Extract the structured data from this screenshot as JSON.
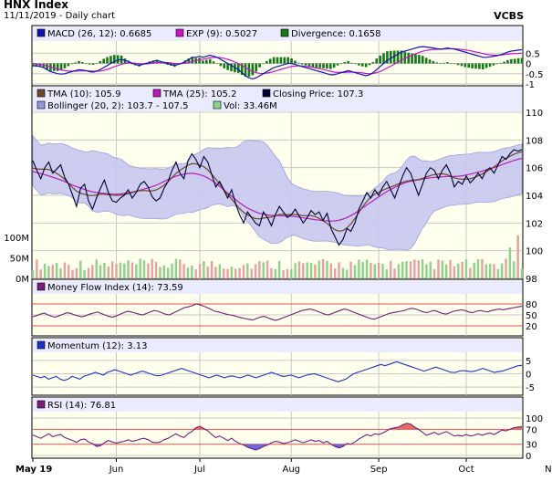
{
  "header": {
    "title": "HNX Index",
    "subtitle": "11/11/2019 - Daily chart",
    "brand": "VCBS"
  },
  "colors": {
    "panel_bg": "#ffffee",
    "legend_bg": "#ebebff",
    "grid": "#c8c8c8",
    "macd": "#1414b4",
    "exp": "#c814c8",
    "divergence": "#147814",
    "tma10": "#6e4628",
    "tma25": "#b41eb4",
    "close": "#000032",
    "bollinger_fill": "#c8c8f0",
    "bollinger_line": "#9696dc",
    "vol_up": "#8cd28c",
    "vol_down": "#e6a0a0",
    "mfi": "#781e78",
    "momentum": "#1e32c8",
    "rsi": "#781e78",
    "overbought": "#e65050",
    "oversold": "#5050dc"
  },
  "x_axis": {
    "labels": [
      "May 19",
      "Jun",
      "Jul",
      "Aug",
      "Sep",
      "Oct",
      "Nov"
    ],
    "positions": [
      0,
      21,
      42,
      65,
      87,
      109,
      131
    ]
  },
  "chart_data": [
    {
      "type": "line",
      "panel": "macd",
      "series": [
        {
          "name": "MACD (26, 12)",
          "last": "0.6685",
          "values": [
            -0.1,
            -0.12,
            -0.15,
            -0.2,
            -0.3,
            -0.4,
            -0.45,
            -0.5,
            -0.52,
            -0.5,
            -0.45,
            -0.4,
            -0.35,
            -0.3,
            -0.32,
            -0.35,
            -0.4,
            -0.42,
            -0.38,
            -0.3,
            -0.2,
            -0.1,
            0.0,
            0.1,
            0.15,
            0.2,
            0.15,
            0.1,
            0.0,
            -0.05,
            -0.1,
            -0.05,
            0.0,
            0.05,
            0.1,
            0.15,
            0.1,
            0.05,
            0.0,
            -0.05,
            -0.1,
            -0.05,
            0.0,
            0.1,
            0.2,
            0.3,
            0.3,
            0.35,
            0.3,
            0.35,
            0.4,
            0.35,
            0.3,
            0.2,
            0.1,
            0.0,
            -0.1,
            -0.2,
            -0.3,
            -0.45,
            -0.6,
            -0.7,
            -0.75,
            -0.7,
            -0.6,
            -0.5,
            -0.4,
            -0.3,
            -0.2,
            -0.15,
            -0.1,
            -0.05,
            0.0,
            0.0,
            -0.05,
            -0.1,
            -0.15,
            -0.2,
            -0.25,
            -0.3,
            -0.35,
            -0.4,
            -0.45,
            -0.5,
            -0.55,
            -0.55,
            -0.5,
            -0.45,
            -0.4,
            -0.35,
            -0.4,
            -0.45,
            -0.5,
            -0.55,
            -0.6,
            -0.55,
            -0.45,
            -0.3,
            -0.15,
            0.0,
            0.15,
            0.25,
            0.35,
            0.45,
            0.55,
            0.6,
            0.65,
            0.7,
            0.75,
            0.8,
            0.82,
            0.8,
            0.78,
            0.75,
            0.72,
            0.7,
            0.72,
            0.75,
            0.72,
            0.7,
            0.65,
            0.6,
            0.55,
            0.5,
            0.45,
            0.4,
            0.35,
            0.3,
            0.3,
            0.32,
            0.35,
            0.38,
            0.42,
            0.48,
            0.55,
            0.6,
            0.62,
            0.65,
            0.6685
          ]
        },
        {
          "name": "EXP (9)",
          "last": "0.5027",
          "values": [
            0.0,
            -0.02,
            -0.05,
            -0.08,
            -0.12,
            -0.17,
            -0.22,
            -0.27,
            -0.32,
            -0.35,
            -0.37,
            -0.38,
            -0.38,
            -0.37,
            -0.36,
            -0.36,
            -0.37,
            -0.38,
            -0.38,
            -0.37,
            -0.34,
            -0.29,
            -0.23,
            -0.16,
            -0.1,
            -0.04,
            0.0,
            0.02,
            0.02,
            0.01,
            -0.01,
            -0.02,
            -0.02,
            -0.01,
            0.01,
            0.04,
            0.05,
            0.05,
            0.04,
            0.02,
            0.0,
            -0.01,
            -0.01,
            0.01,
            0.05,
            0.1,
            0.14,
            0.18,
            0.21,
            0.24,
            0.27,
            0.29,
            0.3,
            0.28,
            0.25,
            0.2,
            0.14,
            0.07,
            -0.01,
            -0.1,
            -0.2,
            -0.3,
            -0.39,
            -0.45,
            -0.48,
            -0.49,
            -0.47,
            -0.44,
            -0.39,
            -0.34,
            -0.29,
            -0.24,
            -0.19,
            -0.15,
            -0.13,
            -0.12,
            -0.12,
            -0.14,
            -0.16,
            -0.19,
            -0.22,
            -0.26,
            -0.3,
            -0.34,
            -0.38,
            -0.42,
            -0.44,
            -0.44,
            -0.44,
            -0.42,
            -0.42,
            -0.43,
            -0.44,
            -0.46,
            -0.49,
            -0.5,
            -0.49,
            -0.45,
            -0.39,
            -0.31,
            -0.22,
            -0.13,
            -0.04,
            0.06,
            0.16,
            0.25,
            0.33,
            0.4,
            0.47,
            0.54,
            0.59,
            0.63,
            0.66,
            0.68,
            0.69,
            0.69,
            0.7,
            0.71,
            0.71,
            0.71,
            0.7,
            0.68,
            0.66,
            0.63,
            0.6,
            0.56,
            0.52,
            0.48,
            0.44,
            0.42,
            0.41,
            0.4,
            0.41,
            0.43,
            0.45,
            0.47,
            0.48,
            0.49,
            0.5027
          ]
        },
        {
          "name": "Divergence",
          "last": "0.1658",
          "values": []
        }
      ],
      "ylim": [
        -1,
        1
      ],
      "ticks": [
        "0.5",
        "0",
        "-0.5",
        "-1"
      ]
    },
    {
      "type": "line",
      "panel": "price",
      "series": [
        {
          "name": "TMA (10)",
          "last": "105.9"
        },
        {
          "name": "TMA (25)",
          "last": "105.2"
        },
        {
          "name": "Closing Price",
          "last": "107.3",
          "values": [
            106.5,
            105.8,
            105.2,
            106.0,
            106.4,
            105.6,
            105.9,
            106.2,
            105.3,
            104.8,
            104.0,
            103.2,
            104.5,
            104.8,
            103.6,
            103.0,
            103.8,
            104.5,
            105.1,
            104.2,
            103.6,
            103.5,
            103.8,
            104.0,
            104.4,
            103.8,
            104.2,
            104.8,
            105.0,
            104.6,
            103.9,
            103.6,
            103.8,
            104.5,
            105.0,
            105.8,
            106.4,
            105.6,
            105.2,
            106.5,
            107.0,
            106.6,
            106.0,
            106.8,
            106.4,
            105.5,
            104.6,
            105.0,
            104.4,
            103.8,
            104.4,
            103.4,
            102.6,
            102.0,
            102.8,
            102.4,
            102.0,
            101.8,
            102.8,
            102.4,
            101.8,
            102.6,
            103.2,
            102.8,
            102.4,
            102.6,
            103.0,
            102.5,
            102.0,
            102.4,
            102.9,
            102.6,
            102.8,
            102.2,
            102.7,
            101.6,
            101.0,
            100.4,
            100.8,
            101.6,
            101.4,
            102.0,
            103.0,
            103.6,
            104.2,
            103.8,
            104.4,
            104.0,
            104.6,
            105.0,
            104.4,
            103.8,
            104.6,
            105.4,
            106.0,
            105.6,
            104.8,
            104.0,
            104.8,
            105.6,
            106.0,
            105.8,
            105.2,
            105.8,
            106.2,
            105.6,
            104.6,
            105.0,
            104.8,
            105.4,
            104.9,
            105.2,
            105.6,
            105.2,
            105.8,
            106.0,
            105.6,
            106.2,
            106.8,
            106.6,
            107.0,
            107.3,
            107.2,
            107.3
          ]
        },
        {
          "name": "Bollinger (20, 2)",
          "last": "103.7 - 107.5"
        },
        {
          "name": "Vol",
          "last": "33.46M"
        }
      ],
      "ylim": [
        98,
        110
      ],
      "ticks": [
        "110",
        "108",
        "106",
        "104",
        "102",
        "100",
        "98"
      ],
      "vol_ticks": [
        "100M",
        "50M",
        "0M"
      ]
    },
    {
      "type": "line",
      "panel": "mfi",
      "series": [
        {
          "name": "Money Flow Index (14)",
          "last": "73.59",
          "values": [
            45,
            48,
            52,
            55,
            50,
            46,
            44,
            48,
            52,
            56,
            54,
            50,
            47,
            45,
            48,
            52,
            55,
            58,
            54,
            50,
            46,
            44,
            47,
            52,
            56,
            60,
            58,
            55,
            52,
            50,
            54,
            58,
            62,
            60,
            56,
            52,
            50,
            55,
            60,
            65,
            70,
            72,
            75,
            80,
            78,
            74,
            70,
            65,
            60,
            58,
            55,
            52,
            50,
            48,
            45,
            42,
            40,
            38,
            36,
            40,
            44,
            46,
            42,
            38,
            35,
            38,
            42,
            46,
            50,
            54,
            58,
            62,
            64,
            66,
            64,
            60,
            56,
            52,
            50,
            54,
            58,
            62,
            66,
            64,
            60,
            56,
            52,
            48,
            44,
            40,
            38,
            42,
            46,
            50,
            54,
            56,
            58,
            60,
            62,
            66,
            68,
            66,
            62,
            58,
            56,
            60,
            62,
            58,
            54,
            52,
            56,
            60,
            62,
            64,
            62,
            58,
            56,
            60,
            62,
            60,
            58,
            62,
            64,
            66,
            64,
            66,
            68,
            70,
            72,
            73.59
          ]
        }
      ],
      "ylim": [
        0,
        100
      ],
      "ticks": [
        "80",
        "50",
        "20"
      ]
    },
    {
      "type": "line",
      "panel": "momentum",
      "series": [
        {
          "name": "Momentum (12)",
          "last": "3.13",
          "values": [
            -0.5,
            -1,
            -1.5,
            -1,
            -2,
            -1.5,
            -1,
            -2,
            -2.5,
            -2,
            -1,
            -1.5,
            -2,
            -1,
            -0.5,
            0,
            0.5,
            0,
            -0.5,
            0.5,
            1,
            1.5,
            1,
            0.5,
            0,
            -0.5,
            0,
            0.5,
            1,
            0.5,
            0,
            -0.5,
            -0.8,
            -0.5,
            0,
            0.5,
            1,
            1.5,
            2,
            1.5,
            1,
            0.5,
            0,
            -0.5,
            -1,
            -1.5,
            -1,
            -0.5,
            -1,
            -1.5,
            -1,
            -0.8,
            -1.2,
            -1.5,
            -1,
            -0.5,
            -1,
            -1.5,
            -1,
            -0.5,
            0,
            0.5,
            0,
            -0.5,
            -1,
            -0.8,
            -0.5,
            -1,
            -1.5,
            -1,
            -0.5,
            -0.2,
            0,
            -0.5,
            -1,
            -1.5,
            -2,
            -2.5,
            -3,
            -2.5,
            -2,
            -1,
            0,
            0.5,
            1,
            1.5,
            2,
            2.5,
            3,
            3.5,
            3,
            3.5,
            4,
            4.5,
            4,
            3.5,
            3,
            2.5,
            2,
            1.5,
            1,
            1.5,
            2,
            2.5,
            2,
            1.5,
            1,
            0.5,
            0.5,
            1,
            1.2,
            1,
            0.8,
            1,
            1.5,
            2,
            1.5,
            1,
            0.5,
            0.8,
            1,
            1.5,
            2,
            2.5,
            3,
            3.13
          ]
        }
      ],
      "ylim": [
        -7,
        7
      ],
      "ticks": [
        "5",
        "0",
        "-5"
      ]
    },
    {
      "type": "line",
      "panel": "rsi",
      "series": [
        {
          "name": "RSI (14)",
          "last": "76.81",
          "values": [
            55,
            50,
            46,
            52,
            58,
            50,
            54,
            56,
            48,
            44,
            40,
            35,
            42,
            44,
            36,
            32,
            24,
            26,
            34,
            40,
            36,
            33,
            36,
            38,
            42,
            38,
            40,
            44,
            46,
            42,
            36,
            34,
            36,
            42,
            46,
            52,
            58,
            52,
            48,
            58,
            64,
            74,
            78,
            72,
            66,
            56,
            48,
            52,
            46,
            40,
            46,
            38,
            32,
            28,
            22,
            18,
            15,
            18,
            24,
            28,
            34,
            38,
            36,
            32,
            34,
            38,
            42,
            38,
            34,
            38,
            42,
            38,
            40,
            34,
            38,
            30,
            24,
            20,
            24,
            32,
            30,
            36,
            44,
            50,
            56,
            52,
            58,
            56,
            60,
            66,
            72,
            74,
            76,
            82,
            86,
            84,
            76,
            70,
            62,
            54,
            58,
            62,
            56,
            60,
            64,
            58,
            52,
            54,
            52,
            56,
            52,
            54,
            58,
            54,
            58,
            60,
            56,
            62,
            68,
            66,
            70,
            74,
            76,
            76.81
          ]
        }
      ],
      "ylim": [
        0,
        110
      ],
      "ticks": [
        "100",
        "70",
        "30",
        "0"
      ]
    }
  ]
}
